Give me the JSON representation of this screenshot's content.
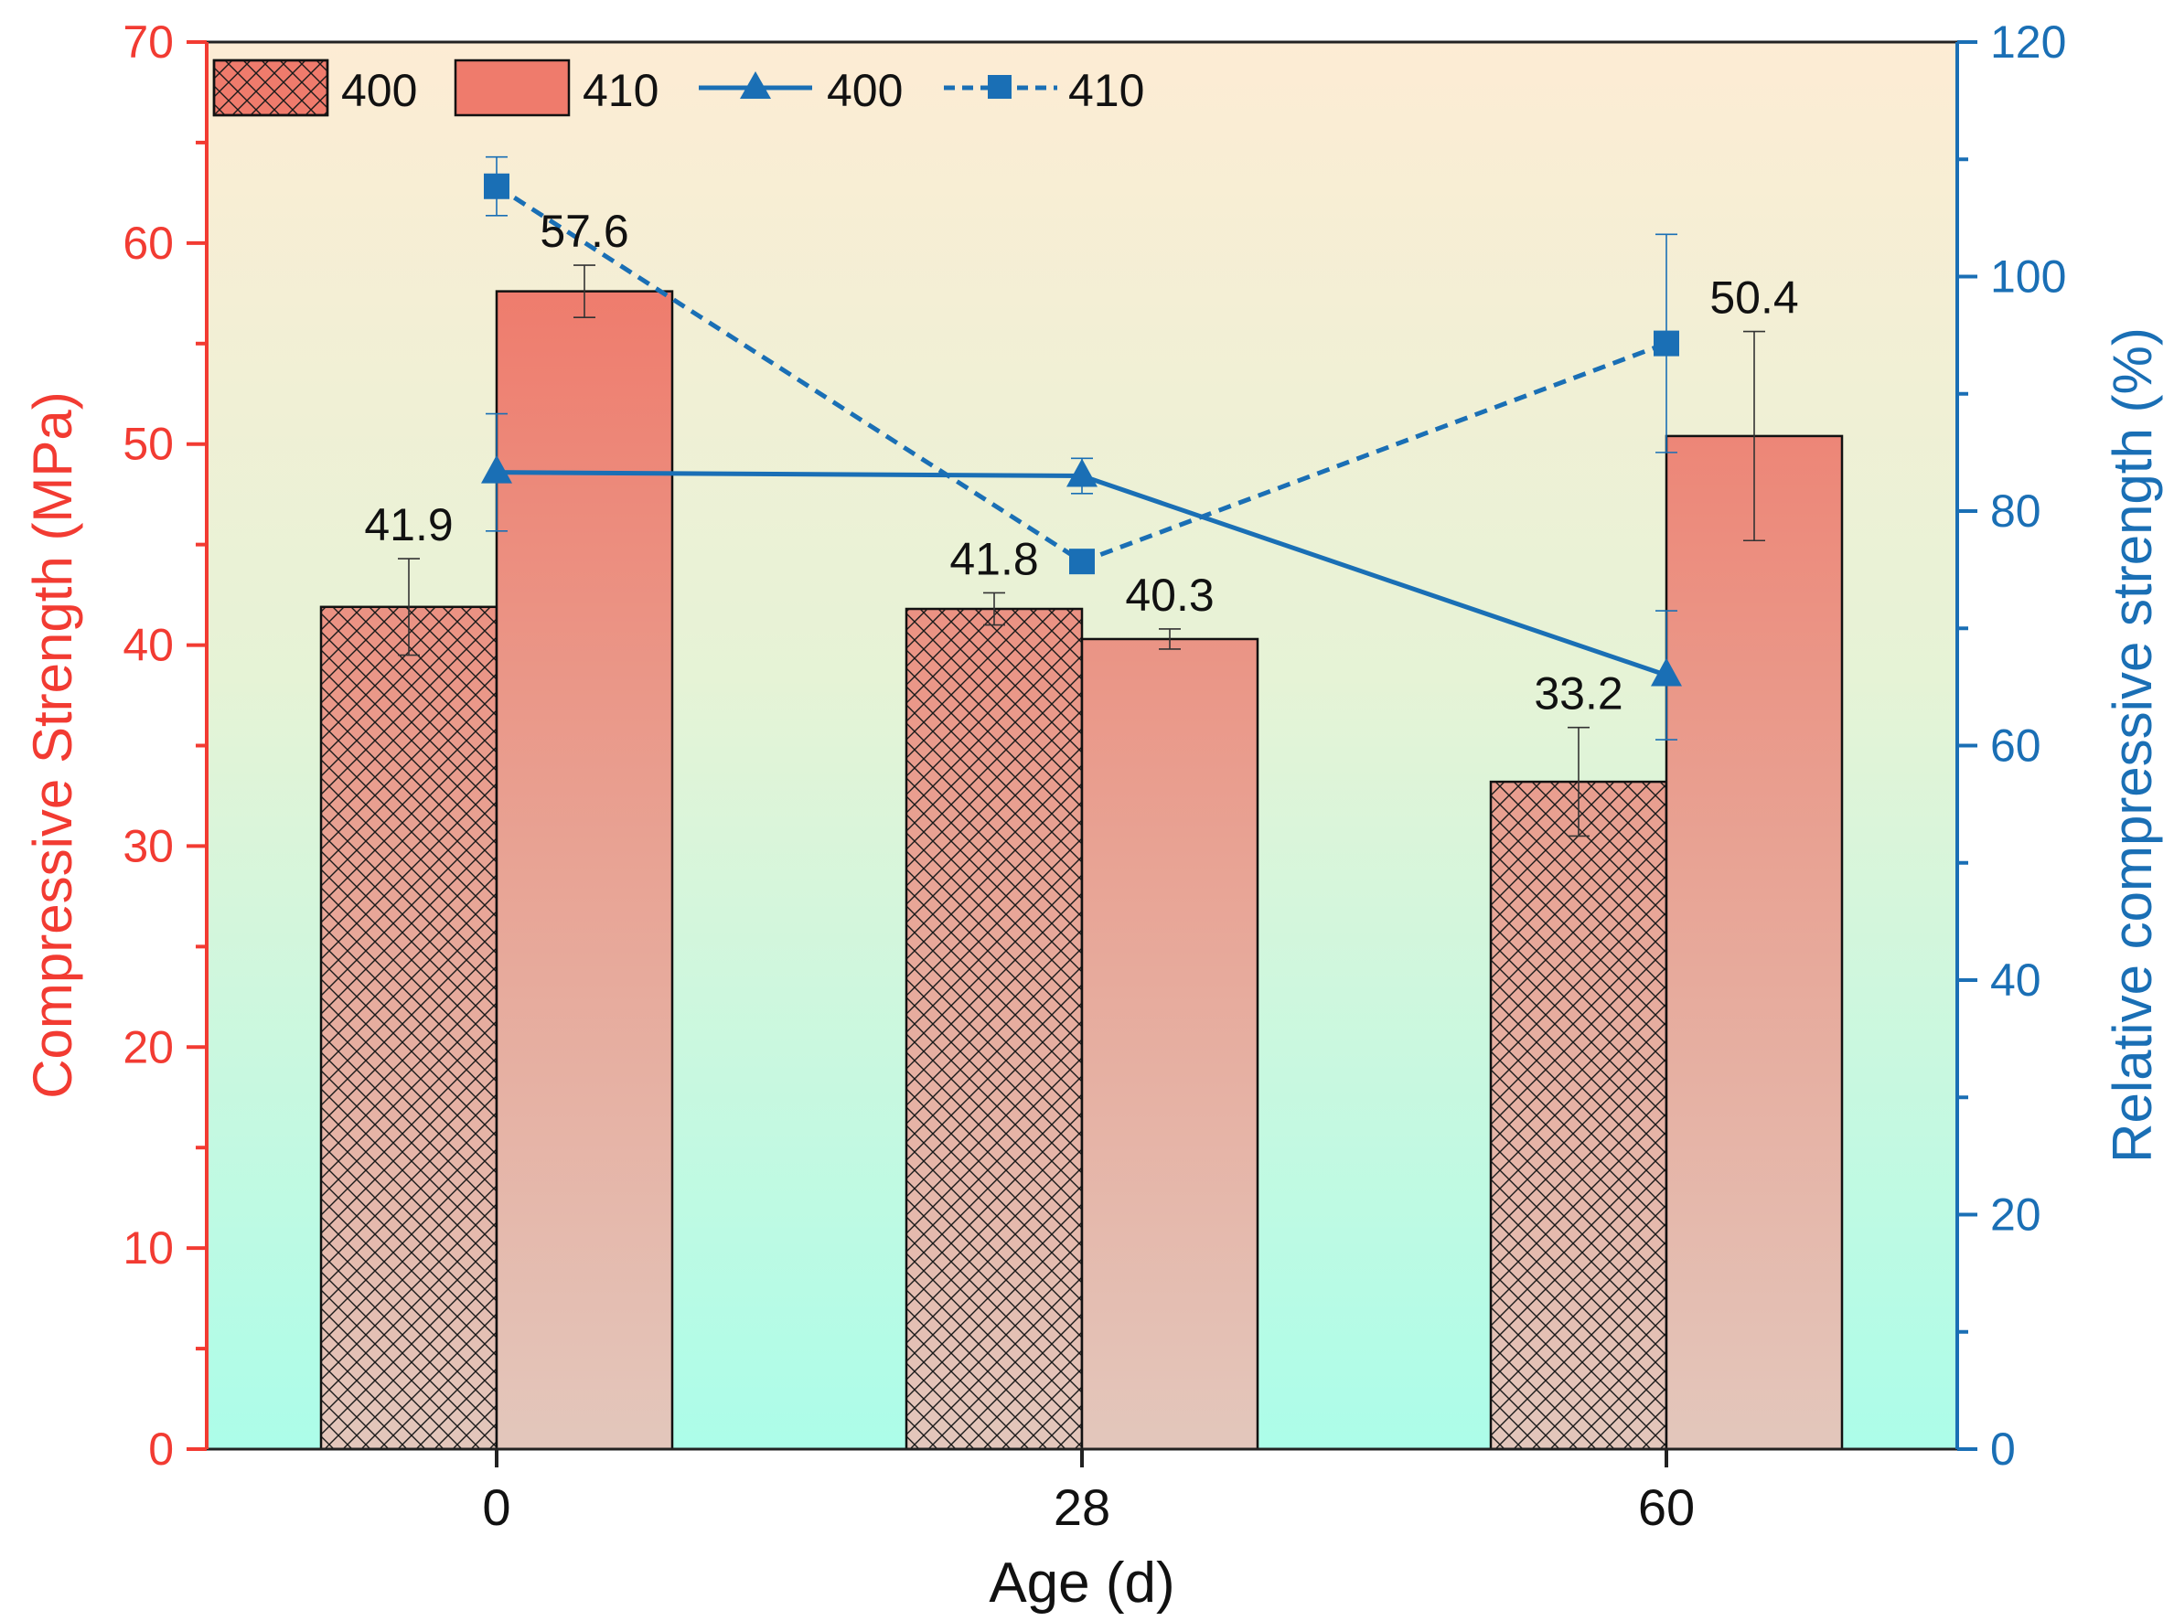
{
  "chart_data": {
    "type": "bar+line",
    "title": "",
    "xlabel": "Age (d)",
    "ylabel": "Compressive Strength (MPa)",
    "y2label": "Relative compressive strength (%)",
    "categories": [
      "0",
      "28",
      "60"
    ],
    "ylim": [
      0,
      70
    ],
    "y2lim": [
      0,
      120
    ],
    "yticks": [
      0,
      10,
      20,
      30,
      40,
      50,
      60,
      70
    ],
    "y2ticks": [
      0,
      20,
      40,
      60,
      80,
      100,
      120
    ],
    "bar_series": [
      {
        "name": "400",
        "pattern": "crosshatch",
        "values": [
          41.9,
          41.8,
          33.2
        ],
        "errors": [
          2.4,
          0.8,
          2.7
        ],
        "labels": [
          "41.9",
          "41.8",
          "33.2"
        ]
      },
      {
        "name": "410",
        "pattern": "solid",
        "values": [
          57.6,
          40.3,
          50.4
        ],
        "errors": [
          1.3,
          0.5,
          5.2
        ],
        "labels": [
          "57.6",
          "40.3",
          "50.4"
        ]
      }
    ],
    "line_series": [
      {
        "name": "400",
        "style": "solid",
        "marker": "triangle",
        "values": [
          83.3,
          83.0,
          66.0
        ],
        "errors": [
          5.0,
          1.5,
          5.5
        ]
      },
      {
        "name": "410",
        "style": "dashed",
        "marker": "square",
        "values": [
          107.7,
          75.7,
          94.3
        ],
        "errors": [
          2.5,
          0.5,
          9.3
        ]
      }
    ],
    "legend": {
      "position": "top-left",
      "entries": [
        "400",
        "410",
        "400",
        "410"
      ]
    },
    "colors": {
      "left_axis": "#f23b32",
      "right_axis": "#1a6fb5",
      "bar_top": "#ee8073",
      "bar_bottom": "#e4c3b7",
      "line": "#1a6fb5",
      "bg_top": "#fdecd4",
      "bg_bottom": "#acfde9"
    }
  }
}
